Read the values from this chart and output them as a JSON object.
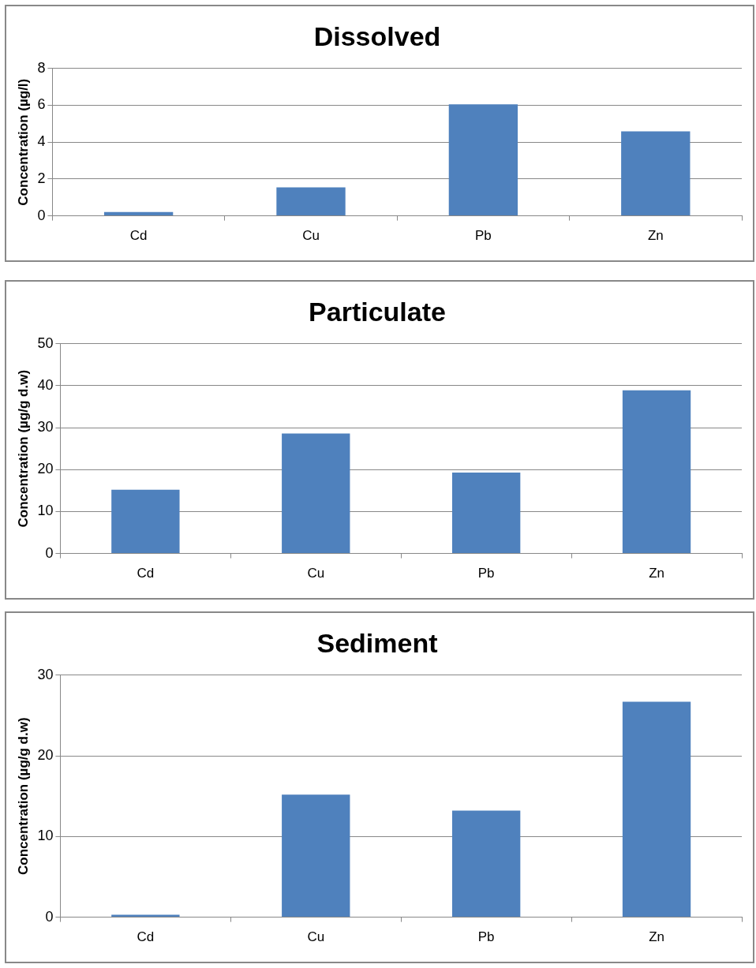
{
  "chart_data": [
    {
      "type": "bar",
      "title": "Dissolved",
      "ylabel": "Concentration (µg/l)",
      "categories": [
        "Cd",
        "Cu",
        "Pb",
        "Zn"
      ],
      "values": [
        0.21,
        1.55,
        6.05,
        4.59
      ],
      "color": "#4f81bd",
      "ylim": [
        0,
        8
      ],
      "yticks": [
        0,
        2,
        4,
        6,
        8
      ],
      "grid": "y",
      "legend": false
    },
    {
      "type": "bar",
      "title": "Particulate",
      "ylabel": "Concentration (µg/g d.w)",
      "categories": [
        "Cd",
        "Cu",
        "Pb",
        "Zn"
      ],
      "values": [
        15.2,
        28.6,
        19.3,
        38.9
      ],
      "color": "#4f81bd",
      "ylim": [
        0,
        50
      ],
      "yticks": [
        0,
        10,
        20,
        30,
        40,
        50
      ],
      "grid": "y",
      "legend": false
    },
    {
      "type": "bar",
      "title": "Sediment",
      "ylabel": "Concentration (µg/g d.w)",
      "categories": [
        "Cd",
        "Cu",
        "Pb",
        "Zn"
      ],
      "values": [
        0.3,
        15.2,
        13.2,
        26.7
      ],
      "color": "#4f81bd",
      "ylim": [
        0,
        30
      ],
      "yticks": [
        0,
        10,
        20,
        30
      ],
      "grid": "y",
      "legend": false
    }
  ]
}
